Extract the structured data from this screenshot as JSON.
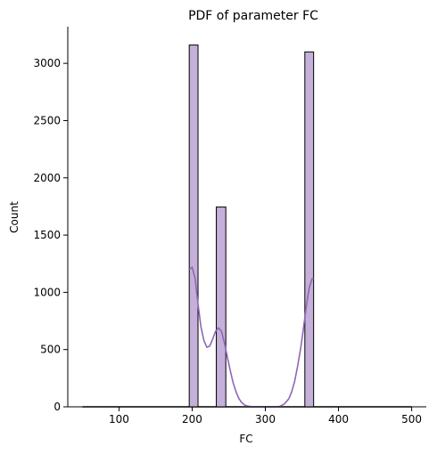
{
  "chart_data": {
    "type": "bar",
    "title": "PDF of parameter FC",
    "xlabel": "FC",
    "ylabel": "Count",
    "xlim": [
      30,
      520
    ],
    "ylim": [
      0,
      3320
    ],
    "xticks": [
      100,
      200,
      300,
      400,
      500
    ],
    "yticks": [
      0,
      500,
      1000,
      1500,
      2000,
      2500,
      3000
    ],
    "grid": false,
    "bin_edges": [
      50,
      62.5,
      75,
      87.5,
      100,
      112.5,
      125,
      137.5,
      150,
      162.5,
      175,
      187.5,
      200,
      212.5,
      225,
      237.5,
      250,
      262.5,
      275,
      287.5,
      300,
      312.5,
      325,
      337.5,
      350,
      362.5,
      375,
      387.5,
      400,
      412.5,
      425,
      437.5,
      450,
      462.5,
      475,
      487.5,
      500
    ],
    "bars": [
      {
        "x0": 196,
        "x1": 208,
        "count": 3160
      },
      {
        "x0": 233,
        "x1": 246,
        "count": 1745
      },
      {
        "x0": 354,
        "x1": 366,
        "count": 3100
      }
    ],
    "kde": {
      "x": [
        196,
        200,
        204,
        208,
        212,
        216,
        220,
        224,
        228,
        232,
        236,
        240,
        244,
        248,
        252,
        256,
        260,
        264,
        268,
        272,
        276,
        280,
        290,
        300,
        310,
        316,
        320,
        326,
        332,
        336,
        340,
        344,
        348,
        352,
        356,
        360,
        364,
        366
      ],
      "y": [
        1200,
        1220,
        1120,
        900,
        700,
        580,
        520,
        530,
        590,
        660,
        690,
        660,
        560,
        440,
        320,
        210,
        130,
        70,
        35,
        15,
        6,
        2,
        0,
        0,
        0,
        0,
        5,
        25,
        70,
        130,
        220,
        350,
        500,
        680,
        880,
        1040,
        1120,
        1120
      ]
    },
    "colors": {
      "bar_fill": "#c5b0d9",
      "bar_edge": "#000000",
      "kde_line": "#8f66b8"
    }
  }
}
